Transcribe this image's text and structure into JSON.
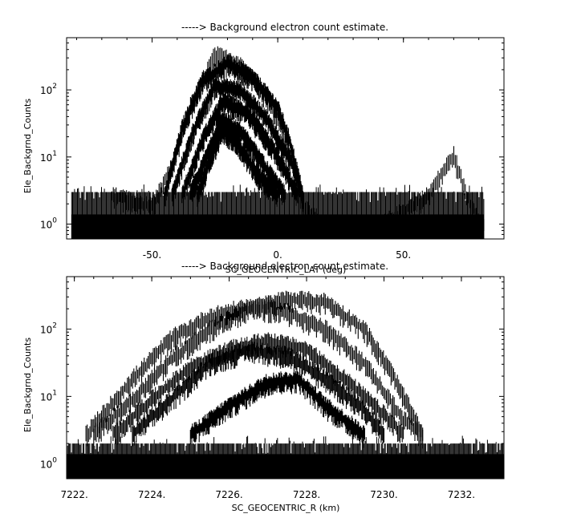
{
  "chart_data": [
    {
      "type": "line",
      "title": "-----> Background electron count estimate.",
      "xlabel": "SC_GEOCENTRIC_LAT (deg)",
      "ylabel": "Ele_Backgrnd_Counts",
      "xlim": [
        -84,
        90
      ],
      "ylim": [
        0.6,
        600
      ],
      "yscale": "log",
      "x_tick_labels": [
        "-50.",
        "0.",
        "50."
      ],
      "x_ticks": [
        -50,
        0,
        50
      ],
      "y_tick_labels": [
        {
          "base": "10",
          "exp": "0"
        },
        {
          "base": "10",
          "exp": "1"
        },
        {
          "base": "10",
          "exp": "2"
        }
      ],
      "y_ticks": [
        1,
        10,
        100
      ],
      "series": [
        {
          "values": [
            [
              -66,
              3
            ],
            [
              -50,
              2
            ],
            [
              -42,
              8
            ],
            [
              -35,
              60
            ],
            [
              -25,
              370
            ],
            [
              -15,
              280
            ],
            [
              -5,
              90
            ],
            [
              0,
              40
            ],
            [
              5,
              12
            ],
            [
              10,
              2
            ],
            [
              20,
              1
            ],
            [
              40,
              1
            ],
            [
              60,
              3
            ],
            [
              70,
              12
            ],
            [
              75,
              3
            ],
            [
              82,
              1
            ]
          ]
        },
        {
          "values": [
            [
              -45,
              3
            ],
            [
              -38,
              30
            ],
            [
              -30,
              150
            ],
            [
              -20,
              280
            ],
            [
              -10,
              170
            ],
            [
              0,
              60
            ],
            [
              5,
              18
            ],
            [
              10,
              3
            ]
          ]
        },
        {
          "values": [
            [
              -42,
              3
            ],
            [
              -34,
              25
            ],
            [
              -25,
              130
            ],
            [
              -15,
              110
            ],
            [
              -5,
              45
            ],
            [
              5,
              10
            ],
            [
              10,
              3
            ]
          ]
        },
        {
          "values": [
            [
              -38,
              3
            ],
            [
              -30,
              20
            ],
            [
              -22,
              75
            ],
            [
              -12,
              50
            ],
            [
              -2,
              15
            ],
            [
              8,
              3
            ]
          ]
        },
        {
          "values": [
            [
              -35,
              3
            ],
            [
              -28,
              12
            ],
            [
              -22,
              40
            ],
            [
              -14,
              25
            ],
            [
              -5,
              8
            ],
            [
              3,
              3
            ]
          ]
        },
        {
          "values": [
            [
              -32,
              3
            ],
            [
              -27,
              10
            ],
            [
              -22,
              28
            ],
            [
              -16,
              18
            ],
            [
              -8,
              6
            ],
            [
              0,
              3
            ]
          ]
        }
      ],
      "background": {
        "x": [
          -82,
          82
        ],
        "y_level": 3,
        "y_floor": 1
      }
    },
    {
      "type": "line",
      "title": "-----> Background electron count estimate.",
      "xlabel": "SC_GEOCENTRIC_R (km)",
      "ylabel": "Ele_Backgrnd_Counts",
      "xlim": [
        7221.8,
        7233.1
      ],
      "ylim": [
        0.6,
        600
      ],
      "yscale": "log",
      "x_tick_labels": [
        "7222.",
        "7224.",
        "7226.",
        "7228.",
        "7230.",
        "7232."
      ],
      "x_ticks": [
        7222,
        7224,
        7226,
        7228,
        7230,
        7232
      ],
      "y_tick_labels": [
        {
          "base": "10",
          "exp": "0"
        },
        {
          "base": "10",
          "exp": "1"
        },
        {
          "base": "10",
          "exp": "2"
        }
      ],
      "y_ticks": [
        1,
        10,
        100
      ],
      "series": [
        {
          "values": [
            [
              7222.5,
              3
            ],
            [
              7223.5,
              10
            ],
            [
              7224.5,
              40
            ],
            [
              7225.5,
              110
            ],
            [
              7226.5,
              220
            ],
            [
              7227.5,
              310
            ],
            [
              7228.5,
              280
            ],
            [
              7229.5,
              110
            ],
            [
              7230.2,
              25
            ],
            [
              7231,
              3
            ]
          ]
        },
        {
          "values": [
            [
              7222.3,
              3
            ],
            [
              7223.5,
              20
            ],
            [
              7224.5,
              80
            ],
            [
              7225.5,
              170
            ],
            [
              7226.5,
              240
            ],
            [
              7227.5,
              200
            ],
            [
              7228.5,
              110
            ],
            [
              7229.5,
              35
            ],
            [
              7230.5,
              5
            ],
            [
              7231,
              3
            ]
          ]
        },
        {
          "values": [
            [
              7223,
              3
            ],
            [
              7224,
              10
            ],
            [
              7225,
              30
            ],
            [
              7226,
              55
            ],
            [
              7227,
              75
            ],
            [
              7228,
              55
            ],
            [
              7229,
              20
            ],
            [
              7230,
              6
            ],
            [
              7230.5,
              3
            ]
          ]
        },
        {
          "values": [
            [
              7223.5,
              3
            ],
            [
              7224.5,
              10
            ],
            [
              7225.5,
              35
            ],
            [
              7226.5,
              55
            ],
            [
              7227.5,
              45
            ],
            [
              7228.5,
              20
            ],
            [
              7229.5,
              7
            ],
            [
              7230,
              3
            ]
          ]
        },
        {
          "values": [
            [
              7225,
              3
            ],
            [
              7226,
              8
            ],
            [
              7227,
              18
            ],
            [
              7227.8,
              20
            ],
            [
              7228.5,
              8
            ],
            [
              7229.5,
              3
            ]
          ]
        }
      ],
      "background": {
        "x": [
          7221.8,
          7233.1
        ],
        "y_level": 2,
        "y_floor": 1
      }
    }
  ]
}
